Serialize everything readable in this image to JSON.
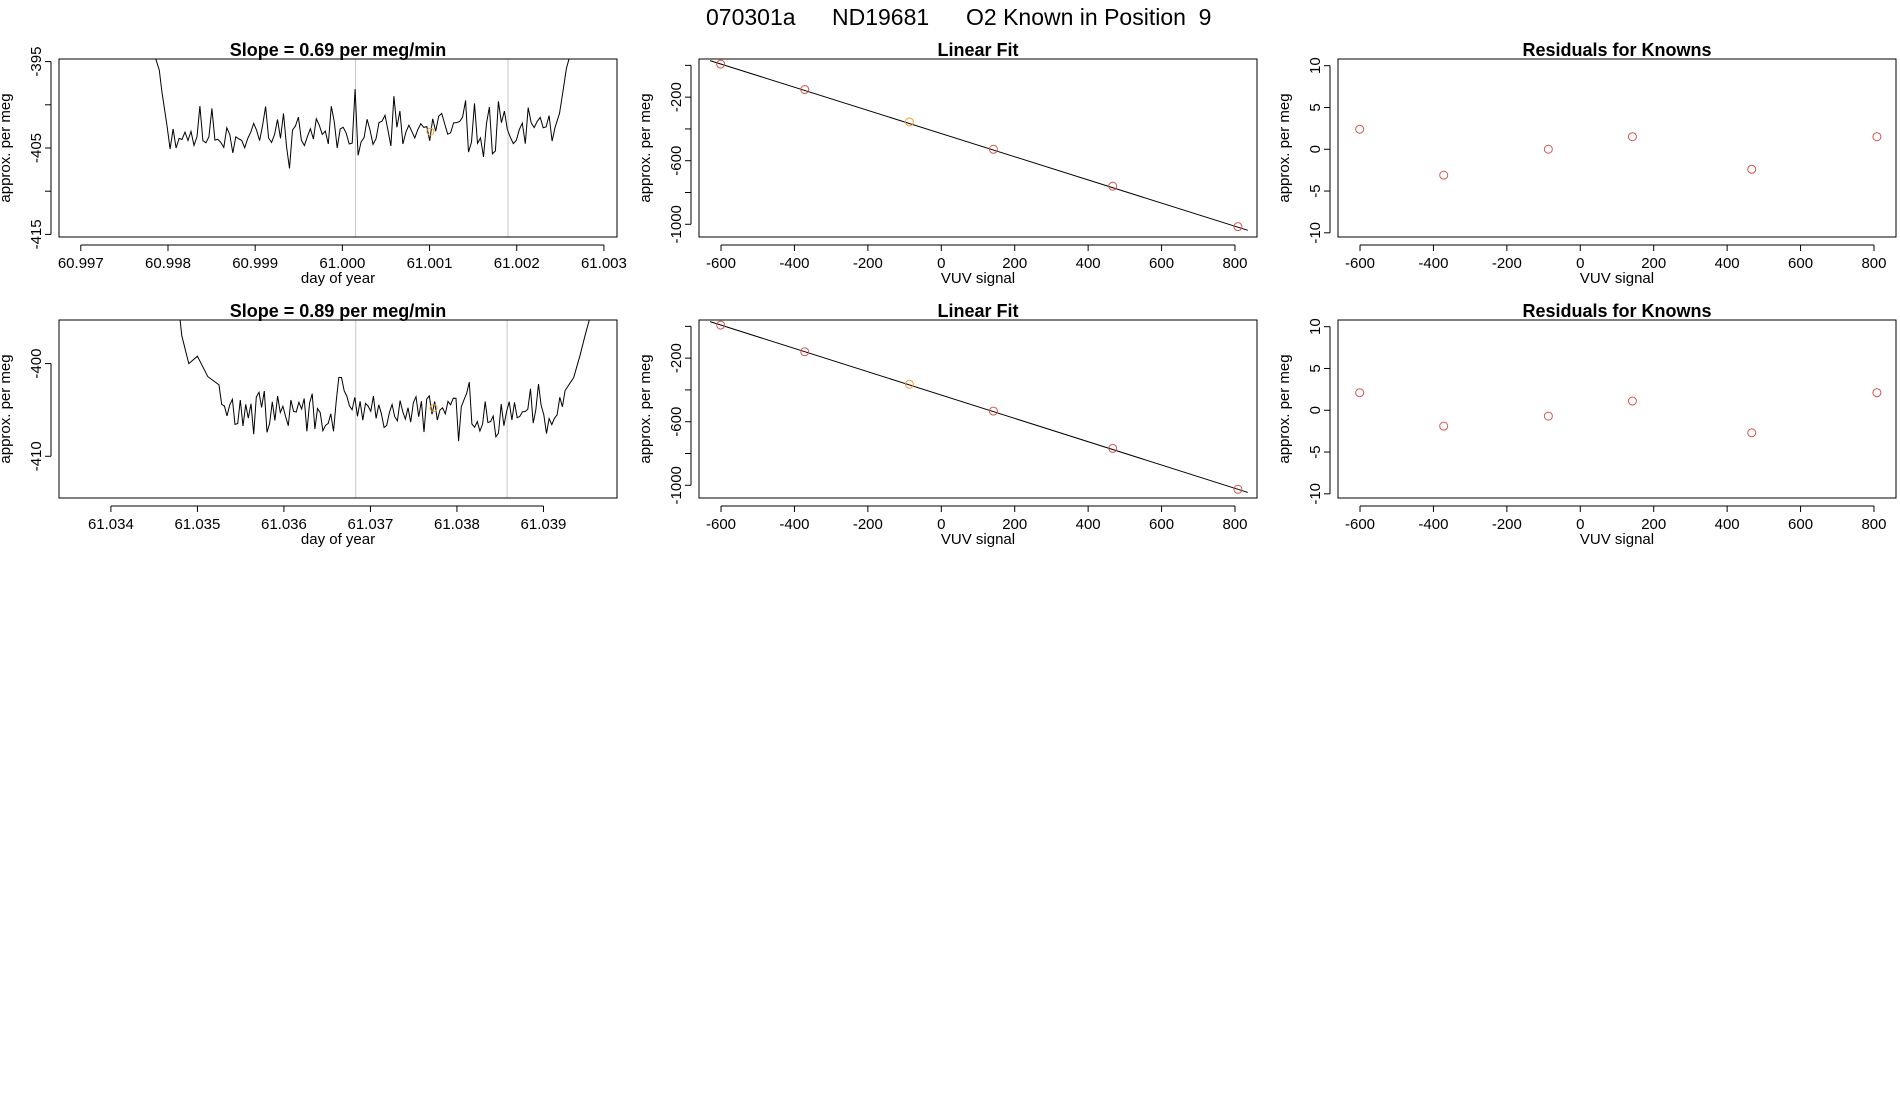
{
  "suptitle": {
    "run_id": "070301a",
    "tank_id": "ND19681",
    "description": "O2 Known in Position  9"
  },
  "colors": {
    "trace": "#000000",
    "fit_line": "#000000",
    "point": "#d9534f",
    "highlight": "#f0a030",
    "marker_line": "#c8c8c8",
    "frame": "#000000"
  },
  "chart_data": [
    {
      "id": "trace-1",
      "type": "line",
      "title": "Slope =  0.69  per meg/min",
      "xlabel": "day of year",
      "ylabel": "approx. per meg",
      "xlim": [
        60.99675,
        61.00315
      ],
      "ylim": [
        -415.3,
        -394.7
      ],
      "xticks": [
        60.997,
        60.998,
        60.999,
        61.0,
        61.001,
        61.002,
        61.003
      ],
      "xtick_labels": [
        "60.997",
        "60.998",
        "60.999",
        "61.000",
        "61.001",
        "61.002",
        "61.003"
      ],
      "yticks": [
        -395,
        -405,
        -415
      ],
      "ytick_labels": [
        "-395",
        "-405",
        "-415"
      ],
      "yminor_ticks": [
        -400,
        -410
      ],
      "x_start": 60.99788,
      "x_end": 61.00258,
      "baseline": -403.2,
      "amplitude": 1.9,
      "seed": 11,
      "edge_start": [
        [
          60.99786,
          -394.7
        ],
        [
          60.9979,
          -396.0
        ],
        [
          60.99793,
          -398.5
        ],
        [
          60.99796,
          -400.5
        ],
        [
          60.99799,
          -402.5
        ]
      ],
      "edge_end": [
        [
          61.00244,
          -402.6
        ],
        [
          61.00249,
          -401.0
        ],
        [
          61.00253,
          -398.5
        ],
        [
          61.00257,
          -395.8
        ],
        [
          61.0026,
          -394.7
        ]
      ],
      "spikes": [
        [
          61.00016,
          -398.2
        ],
        [
          61.00058,
          -399.0
        ],
        [
          61.0014,
          -399.5
        ],
        [
          61.00178,
          -399.6
        ]
      ],
      "vlines": [
        61.00015,
        61.0019
      ],
      "highlight_point": [
        61.00101,
        -403.1
      ]
    },
    {
      "id": "fit-1",
      "type": "scatter",
      "title": "Linear Fit",
      "xlabel": "VUV signal",
      "ylabel": "approx. per meg",
      "xlim": [
        -660,
        860
      ],
      "ylim": [
        -1080,
        40
      ],
      "xticks": [
        -600,
        -400,
        -200,
        0,
        200,
        400,
        600,
        800
      ],
      "xtick_labels": [
        "-600",
        "-400",
        "-200",
        "0",
        "200",
        "400",
        "600",
        "800"
      ],
      "yticks": [
        -200,
        -600,
        -1000
      ],
      "ytick_labels": [
        "-200",
        "-600",
        "-1000"
      ],
      "yminor_ticks": [
        0,
        -400,
        -800
      ],
      "x": [
        -601,
        -372,
        -87,
        142,
        467,
        808
      ],
      "y": [
        8,
        -152,
        -356,
        -528,
        -760,
        -1015
      ],
      "highlight_index": 2,
      "fit_line": [
        [
          -630,
          30
        ],
        [
          835,
          -1038
        ]
      ]
    },
    {
      "id": "resid-1",
      "type": "scatter",
      "title": "Residuals for Knowns",
      "xlabel": "VUV signal",
      "ylabel": "approx. per meg",
      "xlim": [
        -660,
        860
      ],
      "ylim": [
        -10.5,
        10.8
      ],
      "xticks": [
        -600,
        -400,
        -200,
        0,
        200,
        400,
        600,
        800
      ],
      "xtick_labels": [
        "-600",
        "-400",
        "-200",
        "0",
        "200",
        "400",
        "600",
        "800"
      ],
      "yticks": [
        10,
        5,
        0,
        -5,
        -10
      ],
      "ytick_labels": [
        "10",
        "5",
        "0",
        "-5",
        "-10"
      ],
      "yminor_ticks": [],
      "x": [
        -601,
        -372,
        -87,
        142,
        467,
        808
      ],
      "y": [
        2.4,
        -3.1,
        0.0,
        1.5,
        -2.4,
        1.5
      ]
    },
    {
      "id": "trace-2",
      "type": "line",
      "title": "Slope =  0.89  per meg/min",
      "xlabel": "day of year",
      "ylabel": "approx. per meg",
      "xlim": [
        61.0334,
        61.03985
      ],
      "ylim": [
        -414.5,
        -395.3
      ],
      "xticks": [
        61.034,
        61.035,
        61.036,
        61.037,
        61.038,
        61.039
      ],
      "xtick_labels": [
        "61.034",
        "61.035",
        "61.036",
        "61.037",
        "61.038",
        "61.039"
      ],
      "yticks": [
        -400,
        -410
      ],
      "ytick_labels": [
        "-400",
        "-410"
      ],
      "yminor_ticks": [
        -395
      ],
      "x_start": 61.03485,
      "x_end": 61.03935,
      "baseline": -405.2,
      "amplitude": 1.5,
      "seed": 29,
      "edge_start": [
        [
          61.0348,
          -395.3
        ],
        [
          61.03482,
          -397.0
        ],
        [
          61.03486,
          -398.5
        ],
        [
          61.0349,
          -400.0
        ],
        [
          61.035,
          -399.2
        ],
        [
          61.03512,
          -401.4
        ],
        [
          61.03525,
          -402.3
        ]
      ],
      "edge_end": [
        [
          61.03925,
          -402.9
        ],
        [
          61.03935,
          -401.5
        ],
        [
          61.03942,
          -399.2
        ],
        [
          61.03948,
          -397.0
        ],
        [
          61.03953,
          -395.3
        ]
      ],
      "spikes": [
        [
          61.03665,
          -401.5
        ],
        [
          61.03815,
          -402.0
        ],
        [
          61.03895,
          -402.2
        ]
      ],
      "vlines": [
        61.03683,
        61.03858
      ],
      "highlight_point": [
        61.03773,
        -404.8
      ]
    },
    {
      "id": "fit-2",
      "type": "scatter",
      "title": "Linear Fit",
      "xlabel": "VUV signal",
      "ylabel": "approx. per meg",
      "xlim": [
        -660,
        860
      ],
      "ylim": [
        -1080,
        40
      ],
      "xticks": [
        -600,
        -400,
        -200,
        0,
        200,
        400,
        600,
        800
      ],
      "xtick_labels": [
        "-600",
        "-400",
        "-200",
        "0",
        "200",
        "400",
        "600",
        "800"
      ],
      "yticks": [
        -200,
        -600,
        -1000
      ],
      "ytick_labels": [
        "-200",
        "-600",
        "-1000"
      ],
      "yminor_ticks": [
        0,
        -400,
        -800
      ],
      "x": [
        -601,
        -372,
        -87,
        142,
        467,
        808
      ],
      "y": [
        8,
        -160,
        -364,
        -533,
        -768,
        -1025
      ],
      "highlight_index": 2,
      "fit_line": [
        [
          -630,
          30
        ],
        [
          835,
          -1045
        ]
      ]
    },
    {
      "id": "resid-2",
      "type": "scatter",
      "title": "Residuals for Knowns",
      "xlabel": "VUV signal",
      "ylabel": "approx. per meg",
      "xlim": [
        -660,
        860
      ],
      "ylim": [
        -10.5,
        10.8
      ],
      "xticks": [
        -600,
        -400,
        -200,
        0,
        200,
        400,
        600,
        800
      ],
      "xtick_labels": [
        "-600",
        "-400",
        "-200",
        "0",
        "200",
        "400",
        "600",
        "800"
      ],
      "yticks": [
        10,
        5,
        0,
        -5,
        -10
      ],
      "ytick_labels": [
        "10",
        "5",
        "0",
        "-5",
        "-10"
      ],
      "yminor_ticks": [],
      "x": [
        -601,
        -372,
        -87,
        142,
        467,
        808
      ],
      "y": [
        2.1,
        -1.9,
        -0.7,
        1.1,
        -2.7,
        2.1
      ]
    }
  ]
}
